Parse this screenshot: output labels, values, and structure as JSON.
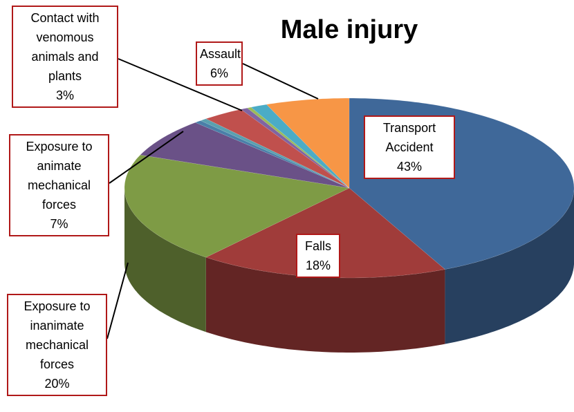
{
  "chart_data": {
    "type": "pie",
    "title": "Male injury",
    "categories": [
      "Transport Accident",
      "Falls",
      "Exposure to inanimate mechanical forces",
      "Exposure to animate mechanical forces",
      null,
      null,
      "Contact with venomous animals and plants",
      null,
      null,
      null,
      "Assault"
    ],
    "values": [
      43,
      18,
      20,
      7,
      0.5,
      0.5,
      3,
      0.5,
      0.3,
      1.2,
      6
    ],
    "value_labels": [
      "43%",
      "18%",
      "20%",
      "7%",
      null,
      null,
      "3%",
      null,
      null,
      null,
      "6%"
    ],
    "colors": [
      "#3f6899",
      "#a03c3a",
      "#7e9b45",
      "#6a5187",
      "#4a7fa8",
      "#5aa0b0",
      "#c0504d",
      "#8064a2",
      "#9bbb59",
      "#4bacc6",
      "#f79646"
    ]
  }
}
